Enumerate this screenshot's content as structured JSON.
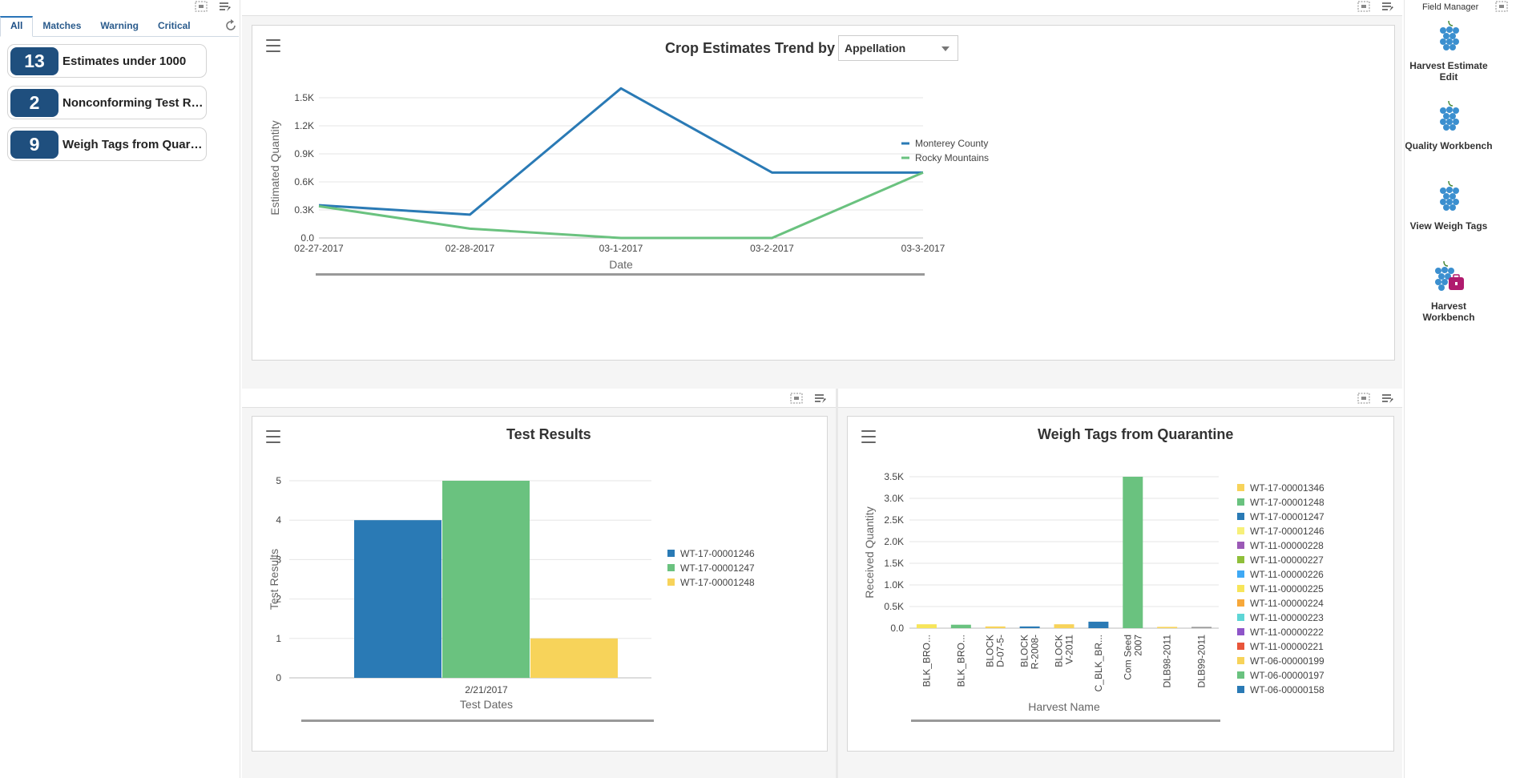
{
  "watchlist": {
    "tabs": [
      {
        "label": "All"
      },
      {
        "label": "Matches"
      },
      {
        "label": "Warning"
      },
      {
        "label": "Critical"
      }
    ],
    "cards": [
      {
        "count": "13",
        "label": "Estimates under 1000"
      },
      {
        "count": "2",
        "label": "Nonconforming Test Re..."
      },
      {
        "count": "9",
        "label": "Weigh Tags from Quara..."
      }
    ]
  },
  "crop_chart": {
    "title": "Crop Estimates Trend by",
    "select_value": "Appellation"
  },
  "test_chart": {
    "title": "Test Results"
  },
  "weigh_chart": {
    "title": "Weigh Tags from Quarantine"
  },
  "field_manager": {
    "title": "Field Manager",
    "items": [
      {
        "label": "Harvest Estimate Edit",
        "icon": "grapes-icon"
      },
      {
        "label": "Quality Workbench",
        "icon": "grapes-icon"
      },
      {
        "label": "View Weigh Tags",
        "icon": "grapes-icon"
      },
      {
        "label": "Harvest Workbench",
        "icon": "grapes-briefcase-icon"
      }
    ]
  },
  "colors": {
    "blue": "#2a7ab5",
    "green": "#6ac27f",
    "yellow": "#f7d35a",
    "badge": "#1f4f7e",
    "accent": "#b01b6e"
  },
  "chart_data": [
    {
      "type": "line",
      "title": "Crop Estimates Trend by",
      "xlabel": "Date",
      "ylabel": "Estimated Quantity",
      "categories": [
        "02-27-2017",
        "02-28-2017",
        "03-1-2017",
        "03-2-2017",
        "03-3-2017"
      ],
      "y_ticks": [
        "0.0",
        "0.3K",
        "0.6K",
        "0.9K",
        "1.2K",
        "1.5K"
      ],
      "ylim": [
        0,
        1500
      ],
      "grid": true,
      "legend": "right",
      "series": [
        {
          "name": "Monterey County",
          "values": [
            350,
            250,
            1600,
            700,
            700
          ],
          "color": "#2a7ab5"
        },
        {
          "name": "Rocky Mountains",
          "values": [
            340,
            100,
            0,
            0,
            700
          ],
          "color": "#6ac27f"
        }
      ]
    },
    {
      "type": "bar",
      "title": "Test Results",
      "xlabel": "Test Dates",
      "ylabel": "Test Results",
      "categories": [
        "2/21/2017"
      ],
      "y_ticks": [
        "0",
        "1",
        "2",
        "3",
        "4",
        "5"
      ],
      "ylim": [
        0,
        5
      ],
      "grid": true,
      "legend": "right",
      "series": [
        {
          "name": "WT-17-00001246",
          "values": [
            4
          ],
          "color": "#2a7ab5"
        },
        {
          "name": "WT-17-00001247",
          "values": [
            5
          ],
          "color": "#6ac27f"
        },
        {
          "name": "WT-17-00001248",
          "values": [
            1
          ],
          "color": "#f7d35a"
        }
      ]
    },
    {
      "type": "bar",
      "title": "Weigh Tags from Quarantine",
      "xlabel": "Harvest Name",
      "ylabel": "Received Quantity",
      "categories": [
        "BLK_BRO...",
        "BLK_BRO...",
        "BLOCK D-07-5-",
        "BLOCK R-2008-",
        "BLOCK V-2011",
        "C_BLK_BR...",
        "Com Seed 2007",
        "DLB98-2011",
        "DLB99-2011"
      ],
      "category_lines": [
        [
          "BLK_BRO..."
        ],
        [
          "BLK_BRO..."
        ],
        [
          "BLOCK",
          "D-07-5-"
        ],
        [
          "BLOCK",
          "R-2008-"
        ],
        [
          "BLOCK",
          "V-2011"
        ],
        [
          "C_BLK_BR..."
        ],
        [
          "Com Seed",
          "2007"
        ],
        [
          "DLB98-2011"
        ],
        [
          "DLB99-2011"
        ]
      ],
      "y_ticks": [
        "0.0",
        "0.5K",
        "1.0K",
        "1.5K",
        "2.0K",
        "2.5K",
        "3.0K",
        "3.5K"
      ],
      "ylim": [
        0,
        3500
      ],
      "grid": true,
      "legend": "right",
      "bars": [
        {
          "value": 90,
          "color": "#f7e55a"
        },
        {
          "value": 80,
          "color": "#6ac27f"
        },
        {
          "value": 40,
          "color": "#f7d35a"
        },
        {
          "value": 40,
          "color": "#2a7ab5"
        },
        {
          "value": 90,
          "color": "#f7d35a"
        },
        {
          "value": 150,
          "color": "#2a7ab5"
        },
        {
          "value": 3500,
          "color": "#6ac27f"
        },
        {
          "value": 30,
          "color": "#f7d35a"
        },
        {
          "value": 30,
          "color": "#999999"
        }
      ],
      "series": [
        {
          "name": "WT-17-00001346",
          "color": "#f7d35a"
        },
        {
          "name": "WT-17-00001248",
          "color": "#6ac27f"
        },
        {
          "name": "WT-17-00001247",
          "color": "#2a7ab5"
        },
        {
          "name": "WT-17-00001246",
          "color": "#f7f07a"
        },
        {
          "name": "WT-11-00000228",
          "color": "#9b59b6"
        },
        {
          "name": "WT-11-00000227",
          "color": "#8fbf3a"
        },
        {
          "name": "WT-11-00000226",
          "color": "#3fa9f5"
        },
        {
          "name": "WT-11-00000225",
          "color": "#f7e55a"
        },
        {
          "name": "WT-11-00000224",
          "color": "#f7a83a"
        },
        {
          "name": "WT-11-00000223",
          "color": "#5ed6d6"
        },
        {
          "name": "WT-11-00000222",
          "color": "#8e55c8"
        },
        {
          "name": "WT-11-00000221",
          "color": "#e8553a"
        },
        {
          "name": "WT-06-00000199",
          "color": "#f7d35a"
        },
        {
          "name": "WT-06-00000197",
          "color": "#6ac27f"
        },
        {
          "name": "WT-06-00000158",
          "color": "#2a7ab5"
        }
      ]
    }
  ]
}
